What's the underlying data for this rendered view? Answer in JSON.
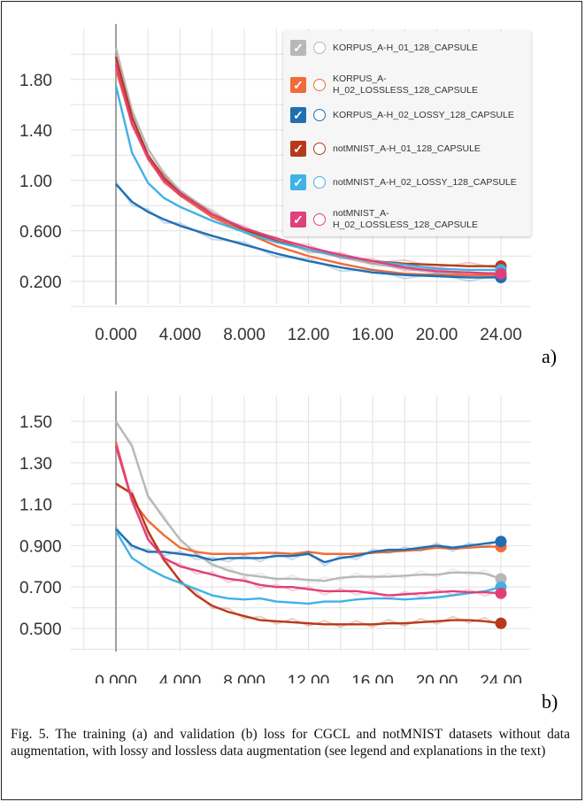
{
  "caption": "Fig. 5. The training (a) and validation (b) loss for CGCL and notMNIST datasets without data augmentation, with lossy and lossless data augmentation (see legend and explanations in the text)",
  "legend": [
    {
      "label": "KORPUS_A-H_01_128_CAPSULE",
      "color": "#b8b8b8"
    },
    {
      "label": "KORPUS_A-H_02_LOSSLESS_128_CAPSULE",
      "color": "#f26b3a"
    },
    {
      "label": "KORPUS_A-H_02_LOSSY_128_CAPSULE",
      "color": "#1f6fb2"
    },
    {
      "label": "notMNIST_A-H_01_128_CAPSULE",
      "color": "#b8391a"
    },
    {
      "label": "notMNIST_A-H_02_LOSSY_128_CAPSULE",
      "color": "#3fb2e6"
    },
    {
      "label": "notMNIST_A-H_02_LOSSLESS_128_CAPSULE",
      "color": "#e0407a"
    }
  ],
  "chart_data": [
    {
      "type": "line",
      "panel_label": "a)",
      "xlim": [
        0,
        24
      ],
      "ylim": [
        0.1,
        2.1
      ],
      "xticks": [
        0,
        4,
        8,
        12,
        16,
        20,
        24
      ],
      "xtick_labels": [
        "0.000",
        "4.000",
        "8.000",
        "12.00",
        "16.00",
        "20.00",
        "24.00"
      ],
      "yticks": [
        0.2,
        0.6,
        1.0,
        1.4,
        1.8
      ],
      "ytick_labels": [
        "0.200",
        "0.600",
        "1.00",
        "1.40",
        "1.80"
      ],
      "grid": true,
      "legend_position": "top-right",
      "x": [
        0,
        1,
        2,
        3,
        4,
        6,
        8,
        10,
        12,
        14,
        16,
        18,
        20,
        22,
        24
      ],
      "series": [
        {
          "name": "KORPUS_A-H_01_128_CAPSULE",
          "color": "#b8b8b8",
          "values": [
            2.05,
            1.55,
            1.25,
            1.05,
            0.92,
            0.74,
            0.62,
            0.52,
            0.45,
            0.39,
            0.34,
            0.3,
            0.27,
            0.25,
            0.24
          ]
        },
        {
          "name": "KORPUS_A-H_02_LOSSLESS_128_CAPSULE",
          "color": "#f26b3a",
          "values": [
            1.88,
            1.45,
            1.17,
            0.99,
            0.88,
            0.71,
            0.59,
            0.48,
            0.4,
            0.34,
            0.29,
            0.26,
            0.25,
            0.25,
            0.25
          ]
        },
        {
          "name": "KORPUS_A-H_02_LOSSY_128_CAPSULE",
          "color": "#1f6fb2",
          "values": [
            0.97,
            0.83,
            0.75,
            0.69,
            0.64,
            0.56,
            0.49,
            0.42,
            0.36,
            0.31,
            0.27,
            0.25,
            0.24,
            0.23,
            0.23
          ]
        },
        {
          "name": "notMNIST_A-H_01_128_CAPSULE",
          "color": "#b8391a",
          "values": [
            1.98,
            1.5,
            1.2,
            1.02,
            0.9,
            0.73,
            0.61,
            0.52,
            0.45,
            0.4,
            0.36,
            0.34,
            0.33,
            0.32,
            0.32
          ]
        },
        {
          "name": "notMNIST_A-H_02_LOSSY_128_CAPSULE",
          "color": "#3fb2e6",
          "values": [
            1.75,
            1.22,
            0.98,
            0.86,
            0.79,
            0.68,
            0.59,
            0.51,
            0.45,
            0.4,
            0.36,
            0.33,
            0.3,
            0.29,
            0.29
          ]
        },
        {
          "name": "notMNIST_A-H_02_LOSSLESS_128_CAPSULE",
          "color": "#e0407a",
          "values": [
            1.92,
            1.45,
            1.18,
            1.0,
            0.89,
            0.73,
            0.62,
            0.54,
            0.47,
            0.41,
            0.36,
            0.31,
            0.28,
            0.27,
            0.26
          ]
        }
      ]
    },
    {
      "type": "line",
      "panel_label": "b)",
      "xlim": [
        0,
        24
      ],
      "ylim": [
        0.44,
        1.56
      ],
      "xticks": [
        0,
        4,
        8,
        12,
        16,
        20,
        24
      ],
      "xtick_labels": [
        "0.000",
        "4.000",
        "8.000",
        "12.00",
        "16.00",
        "20.00",
        "24.00"
      ],
      "yticks": [
        0.5,
        0.7,
        0.9,
        1.1,
        1.3,
        1.5
      ],
      "ytick_labels": [
        "0.500",
        "0.700",
        "0.900",
        "1.10",
        "1.30",
        "1.50"
      ],
      "grid": true,
      "x": [
        0,
        1,
        2,
        3,
        4,
        5,
        6,
        7,
        8,
        9,
        10,
        11,
        12,
        13,
        14,
        15,
        16,
        17,
        18,
        19,
        20,
        21,
        22,
        23,
        24
      ],
      "series": [
        {
          "name": "KORPUS_A-H_01_128_CAPSULE",
          "color": "#b8b8b8",
          "values": [
            1.5,
            1.38,
            1.14,
            1.03,
            0.93,
            0.86,
            0.81,
            0.78,
            0.76,
            0.75,
            0.74,
            0.74,
            0.735,
            0.73,
            0.745,
            0.75,
            0.75,
            0.75,
            0.755,
            0.76,
            0.76,
            0.77,
            0.77,
            0.765,
            0.74
          ]
        },
        {
          "name": "KORPUS_A-H_02_LOSSLESS_128_CAPSULE",
          "color": "#f26b3a",
          "values": [
            1.4,
            1.12,
            1.02,
            0.95,
            0.89,
            0.87,
            0.86,
            0.86,
            0.86,
            0.865,
            0.865,
            0.86,
            0.87,
            0.86,
            0.86,
            0.86,
            0.865,
            0.87,
            0.875,
            0.88,
            0.89,
            0.885,
            0.89,
            0.895,
            0.895
          ]
        },
        {
          "name": "KORPUS_A-H_02_LOSSY_128_CAPSULE",
          "color": "#1f6fb2",
          "values": [
            0.98,
            0.9,
            0.87,
            0.87,
            0.86,
            0.85,
            0.83,
            0.84,
            0.84,
            0.84,
            0.85,
            0.85,
            0.86,
            0.82,
            0.84,
            0.85,
            0.87,
            0.88,
            0.88,
            0.89,
            0.9,
            0.89,
            0.9,
            0.91,
            0.92
          ]
        },
        {
          "name": "notMNIST_A-H_01_128_CAPSULE",
          "color": "#b8391a",
          "values": [
            1.2,
            1.15,
            0.97,
            0.83,
            0.73,
            0.66,
            0.61,
            0.58,
            0.56,
            0.54,
            0.535,
            0.53,
            0.525,
            0.52,
            0.52,
            0.52,
            0.52,
            0.525,
            0.525,
            0.53,
            0.535,
            0.54,
            0.54,
            0.535,
            0.525
          ]
        },
        {
          "name": "notMNIST_A-H_02_LOSSY_128_CAPSULE",
          "color": "#3fb2e6",
          "values": [
            0.97,
            0.84,
            0.79,
            0.75,
            0.72,
            0.69,
            0.66,
            0.645,
            0.64,
            0.645,
            0.63,
            0.625,
            0.62,
            0.63,
            0.63,
            0.64,
            0.645,
            0.645,
            0.64,
            0.645,
            0.65,
            0.66,
            0.67,
            0.68,
            0.7
          ]
        },
        {
          "name": "notMNIST_A-H_02_LOSSLESS_128_CAPSULE",
          "color": "#e0407a",
          "values": [
            1.38,
            1.12,
            0.93,
            0.84,
            0.8,
            0.78,
            0.76,
            0.74,
            0.73,
            0.71,
            0.7,
            0.7,
            0.69,
            0.68,
            0.68,
            0.68,
            0.67,
            0.66,
            0.665,
            0.67,
            0.675,
            0.68,
            0.675,
            0.675,
            0.67
          ]
        }
      ]
    }
  ]
}
